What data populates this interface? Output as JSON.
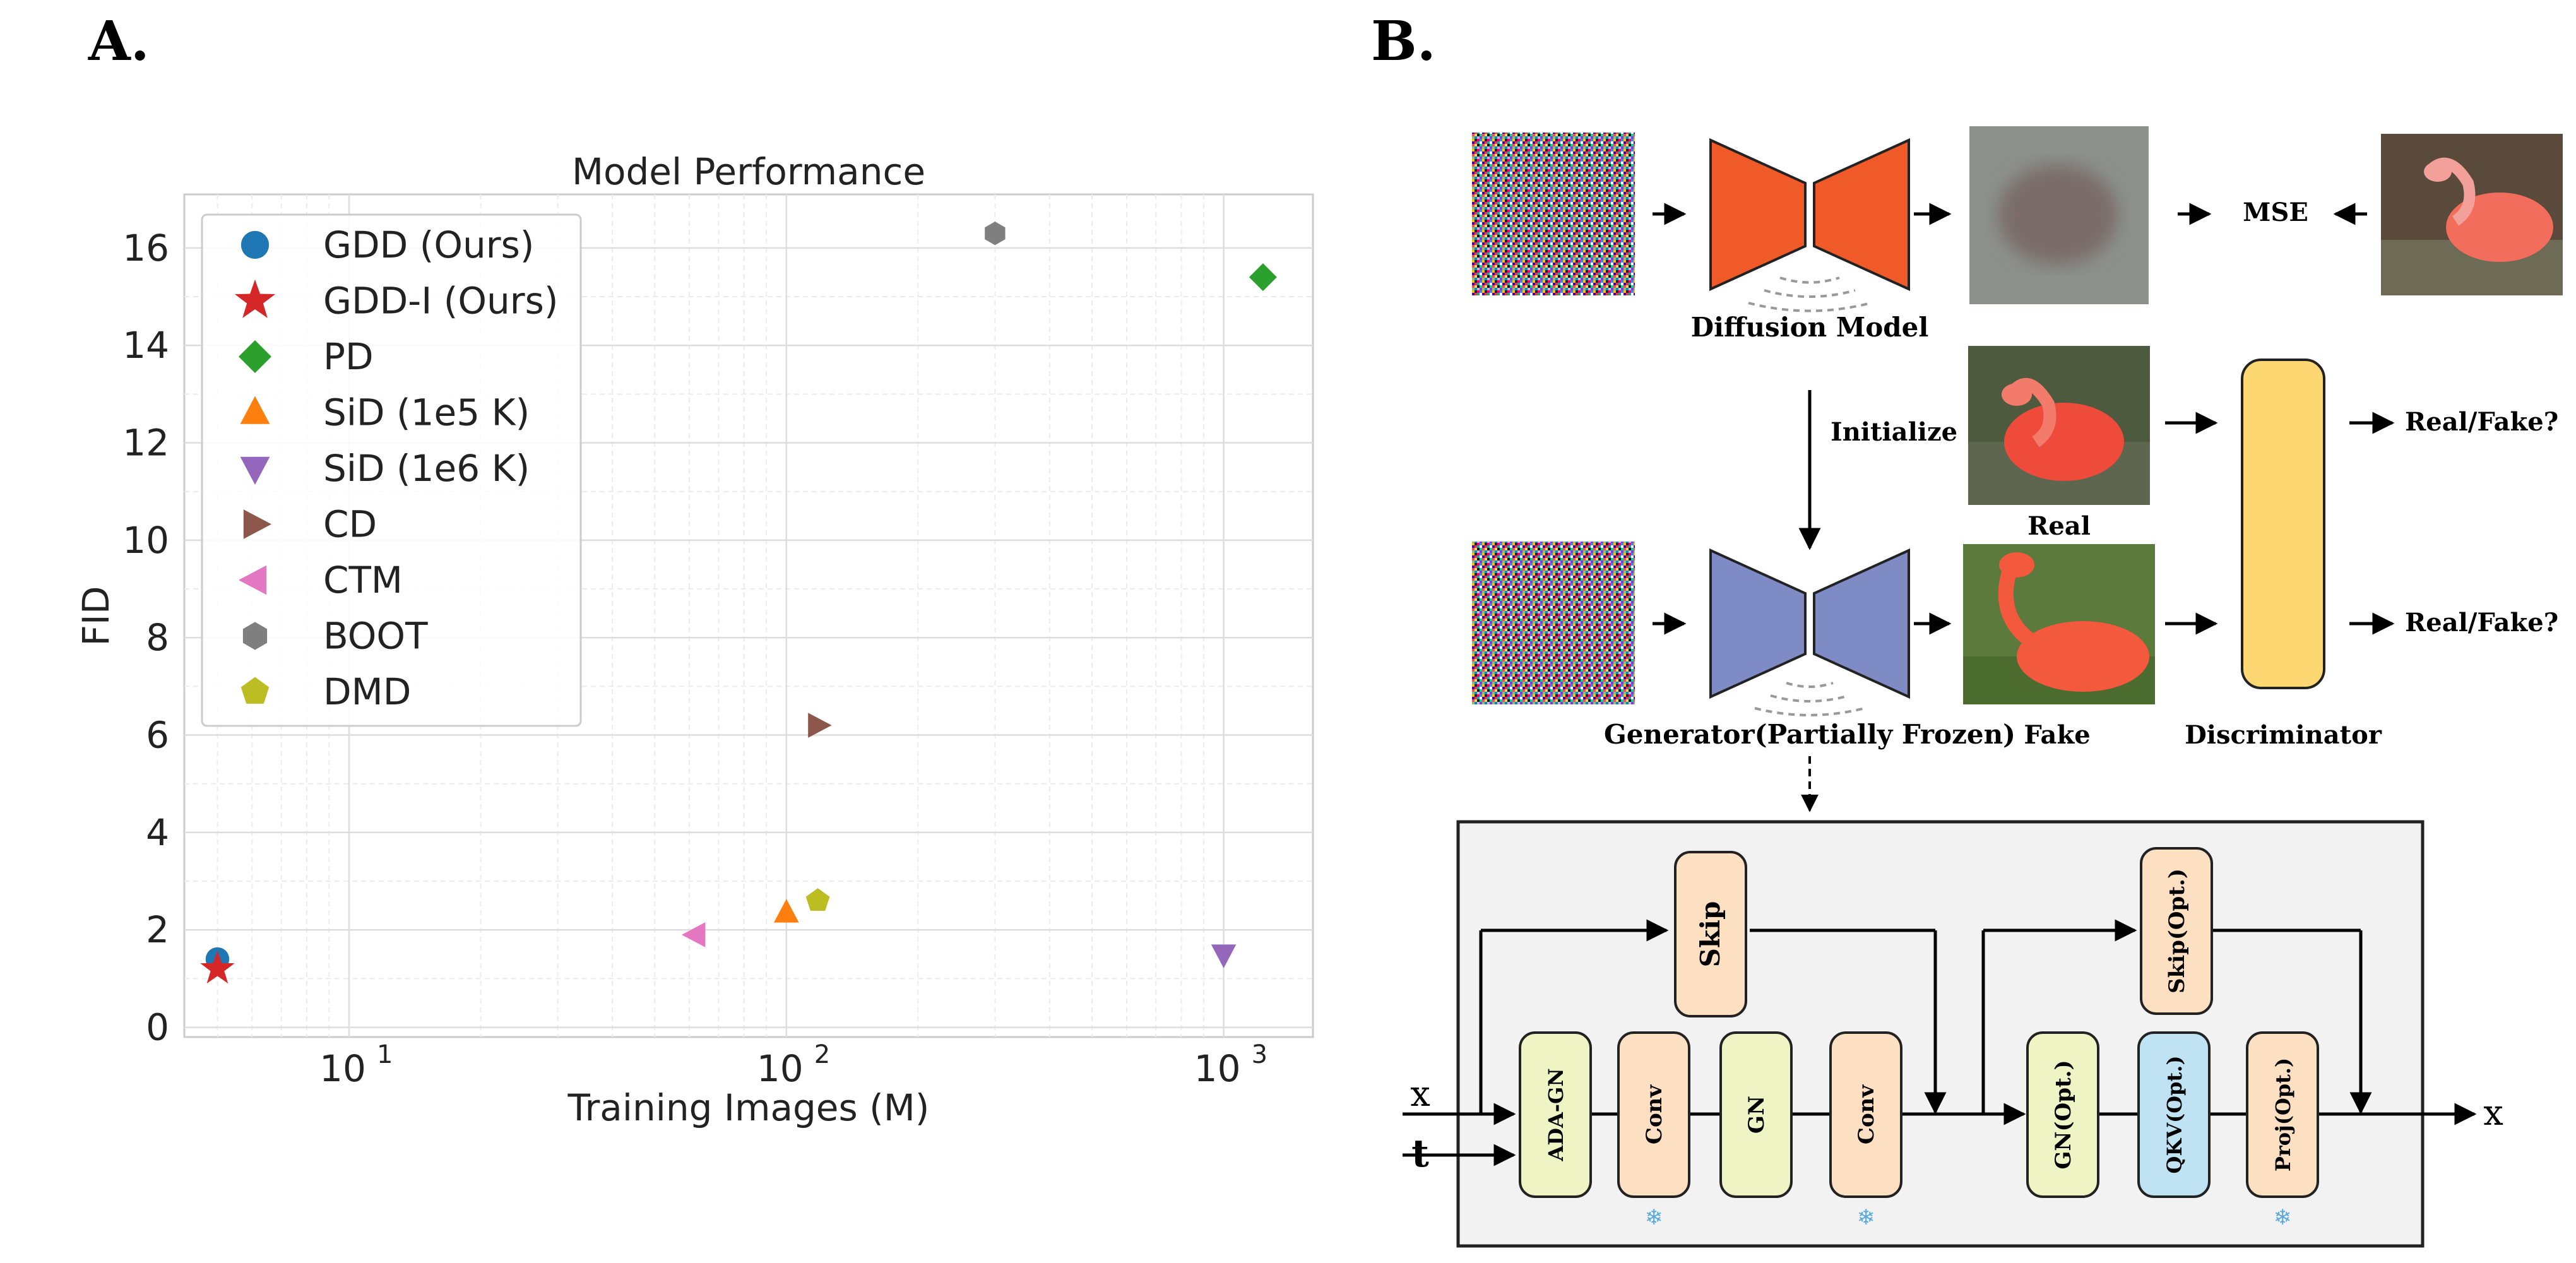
{
  "panel_a_label": "A.",
  "panel_b_label": "B.",
  "chart_data": {
    "type": "scatter",
    "title": "Model Performance",
    "xlabel": "Training Images (M)",
    "ylabel": "FID",
    "xscale": "log",
    "xlim": [
      4.2,
      1600
    ],
    "ylim": [
      -0.2,
      17.1
    ],
    "xticks": [
      10,
      100,
      1000
    ],
    "xtick_labels": [
      {
        "base": "10",
        "exp": "1"
      },
      {
        "base": "10",
        "exp": "2"
      },
      {
        "base": "10",
        "exp": "3"
      }
    ],
    "yticks": [
      0,
      2,
      4,
      6,
      8,
      10,
      12,
      14,
      16
    ],
    "grid": true,
    "legend_position": "upper-left",
    "series": [
      {
        "name": "GDD (Ours)",
        "marker": "circle",
        "color": "#1f77b4",
        "x": 5,
        "y": 1.4
      },
      {
        "name": "GDD-I (Ours)",
        "marker": "star",
        "color": "#d62728",
        "x": 5,
        "y": 1.2
      },
      {
        "name": "PD",
        "marker": "diamond",
        "color": "#2ca02c",
        "x": 1230,
        "y": 15.4
      },
      {
        "name": "SiD (1e5 K)",
        "marker": "triangle-up",
        "color": "#ff7f0e",
        "x": 100,
        "y": 2.35
      },
      {
        "name": "SiD (1e6 K)",
        "marker": "triangle-down",
        "color": "#9467bd",
        "x": 1000,
        "y": 1.5
      },
      {
        "name": "CD",
        "marker": "triangle-right",
        "color": "#8c564b",
        "x": 118,
        "y": 6.2
      },
      {
        "name": "CTM",
        "marker": "triangle-left",
        "color": "#e377c2",
        "x": 62,
        "y": 1.9
      },
      {
        "name": "BOOT",
        "marker": "hexagon",
        "color": "#7f7f7f",
        "x": 300,
        "y": 16.3
      },
      {
        "name": "DMD",
        "marker": "pentagon",
        "color": "#bcbd22",
        "x": 118,
        "y": 2.6
      }
    ]
  },
  "diagram": {
    "top_row": {
      "model_label": "Diffusion Model",
      "loss_label": "MSE"
    },
    "initialize_label": "Initialize",
    "real_label": "Real",
    "fake_label": "Fake",
    "generator_label": "Generator(Partially Frozen)",
    "discriminator_label": "Discriminator",
    "real_fake_top": "Real/Fake?",
    "real_fake_bottom": "Real/Fake?",
    "block": {
      "input_x": "x",
      "input_t": "t",
      "output_x": "x",
      "skip": "Skip",
      "skip_opt": "Skip(Opt.)",
      "ada_gn": "ADA-GN",
      "conv1": "Conv",
      "gn": "GN",
      "conv2": "Conv",
      "gn_opt": "GN(Opt.)",
      "qkv_opt": "QKV(Opt.)",
      "proj_opt": "Proj(Opt.)"
    },
    "colors": {
      "diffusion": "#f05a28",
      "generator": "#7f8bc4",
      "discriminator": "#fdd872",
      "norm_block": "#eef4c4",
      "conv_block": "#fde0c2",
      "qkv_block": "#bfe3f3",
      "frozen_icon": "#5aa9dc"
    }
  }
}
